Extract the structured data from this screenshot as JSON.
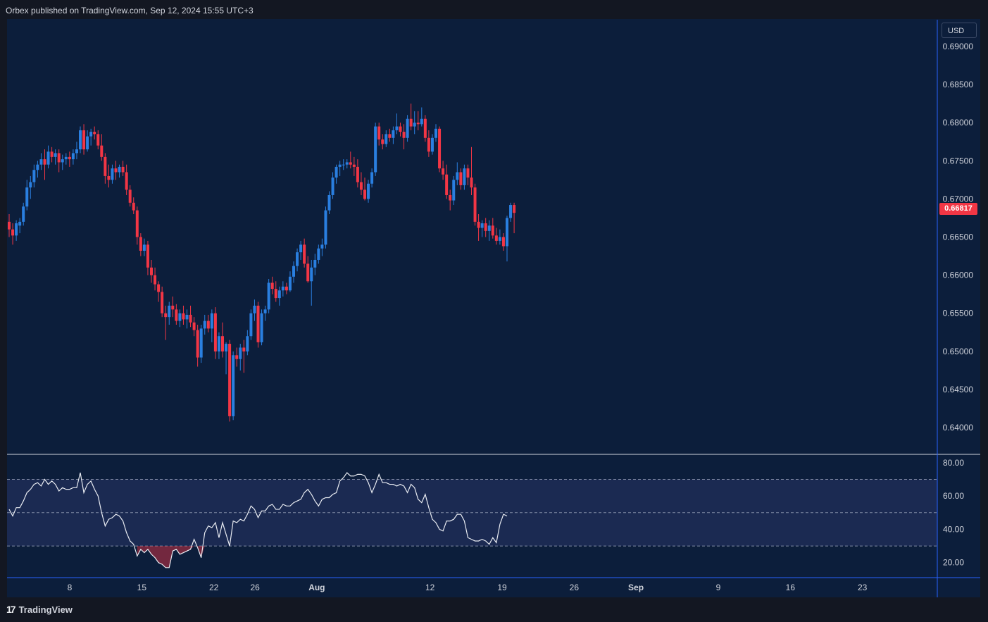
{
  "header": {
    "publisher_text": "Orbex published on TradingView.com, Sep 12, 2024 15:55 UTC+3"
  },
  "footer": {
    "brand": "TradingView",
    "logo_glyph": "17"
  },
  "currency_label": "USD",
  "last_price_label": "0.66817",
  "colors": {
    "background": "#0c1e3b",
    "up": "#2a7fe0",
    "down": "#f23645",
    "rsi_line": "#e9ecf2",
    "rsi_band": "#1d2b55"
  },
  "chart_data": [
    {
      "type": "candlestick",
      "symbol": "AUDUSD",
      "ylim": [
        0.6365,
        0.6935
      ],
      "y_ticks": [
        "0.69000",
        "0.68500",
        "0.68000",
        "0.67500",
        "0.67000",
        "0.66500",
        "0.66000",
        "0.65500",
        "0.65000",
        "0.64500",
        "0.64000"
      ],
      "y_tick_values": [
        0.69,
        0.685,
        0.68,
        0.675,
        0.67,
        0.665,
        0.66,
        0.655,
        0.65,
        0.645,
        0.64
      ],
      "x_ticks": [
        {
          "label": "8",
          "day": 8
        },
        {
          "label": "15",
          "day": 15
        },
        {
          "label": "22",
          "day": 22
        },
        {
          "label": "26",
          "day": 26
        },
        {
          "label": "Aug",
          "day": 32
        },
        {
          "label": "12",
          "day": 43
        },
        {
          "label": "19",
          "day": 50
        },
        {
          "label": "26",
          "day": 57
        },
        {
          "label": "Sep",
          "day": 63
        },
        {
          "label": "9",
          "day": 71
        },
        {
          "label": "16",
          "day": 78
        },
        {
          "label": "23",
          "day": 85
        }
      ],
      "candles": [
        [
          0.667,
          0.668,
          0.665,
          0.666
        ],
        [
          0.666,
          0.6668,
          0.664,
          0.6652
        ],
        [
          0.6652,
          0.6672,
          0.6645,
          0.6668
        ],
        [
          0.6665,
          0.6675,
          0.6655,
          0.667
        ],
        [
          0.667,
          0.6695,
          0.6665,
          0.669
        ],
        [
          0.669,
          0.6725,
          0.6685,
          0.6715
        ],
        [
          0.6715,
          0.673,
          0.67,
          0.6722
        ],
        [
          0.6722,
          0.6745,
          0.6715,
          0.6738
        ],
        [
          0.6738,
          0.675,
          0.6728,
          0.6745
        ],
        [
          0.6745,
          0.676,
          0.6738,
          0.6752
        ],
        [
          0.6752,
          0.6765,
          0.6725,
          0.6745
        ],
        [
          0.6745,
          0.677,
          0.674,
          0.6762
        ],
        [
          0.6762,
          0.6768,
          0.6748,
          0.6755
        ],
        [
          0.6755,
          0.6765,
          0.6745,
          0.676
        ],
        [
          0.676,
          0.6765,
          0.6735,
          0.6748
        ],
        [
          0.6748,
          0.6758,
          0.6738,
          0.6752
        ],
        [
          0.6752,
          0.676,
          0.6745,
          0.6755
        ],
        [
          0.6755,
          0.6762,
          0.6742,
          0.6752
        ],
        [
          0.6752,
          0.6765,
          0.6745,
          0.676
        ],
        [
          0.676,
          0.6775,
          0.6752,
          0.6765
        ],
        [
          0.6765,
          0.6795,
          0.676,
          0.679
        ],
        [
          0.679,
          0.6798,
          0.6758,
          0.6765
        ],
        [
          0.6765,
          0.679,
          0.6762,
          0.6782
        ],
        [
          0.6782,
          0.6792,
          0.677,
          0.6788
        ],
        [
          0.6788,
          0.6795,
          0.6778,
          0.6785
        ],
        [
          0.6785,
          0.679,
          0.6765,
          0.677
        ],
        [
          0.677,
          0.6785,
          0.675,
          0.6755
        ],
        [
          0.6755,
          0.676,
          0.672,
          0.673
        ],
        [
          0.673,
          0.6745,
          0.6715,
          0.6725
        ],
        [
          0.6725,
          0.6745,
          0.672,
          0.674
        ],
        [
          0.674,
          0.675,
          0.6725,
          0.6735
        ],
        [
          0.6735,
          0.6745,
          0.6728,
          0.6742
        ],
        [
          0.6742,
          0.675,
          0.673,
          0.6735
        ],
        [
          0.6735,
          0.6745,
          0.6705,
          0.6712
        ],
        [
          0.6712,
          0.6718,
          0.669,
          0.6695
        ],
        [
          0.6695,
          0.6702,
          0.668,
          0.6685
        ],
        [
          0.6685,
          0.669,
          0.664,
          0.665
        ],
        [
          0.665,
          0.6655,
          0.6625,
          0.6632
        ],
        [
          0.6632,
          0.6648,
          0.6625,
          0.664
        ],
        [
          0.664,
          0.6645,
          0.66,
          0.661
        ],
        [
          0.661,
          0.662,
          0.659,
          0.66
        ],
        [
          0.66,
          0.661,
          0.658,
          0.6588
        ],
        [
          0.6588,
          0.6592,
          0.6565,
          0.6578
        ],
        [
          0.6578,
          0.6585,
          0.6545,
          0.655
        ],
        [
          0.655,
          0.656,
          0.6515,
          0.6545
        ],
        [
          0.6545,
          0.6565,
          0.6535,
          0.656
        ],
        [
          0.656,
          0.6572,
          0.6545,
          0.6555
        ],
        [
          0.6555,
          0.6562,
          0.6535,
          0.654
        ],
        [
          0.654,
          0.6555,
          0.6532,
          0.655
        ],
        [
          0.655,
          0.656,
          0.6535,
          0.6542
        ],
        [
          0.6542,
          0.6555,
          0.653,
          0.6548
        ],
        [
          0.6548,
          0.656,
          0.6532,
          0.6538
        ],
        [
          0.6538,
          0.6545,
          0.652,
          0.6528
        ],
        [
          0.6528,
          0.6535,
          0.648,
          0.6492
        ],
        [
          0.6492,
          0.6535,
          0.6485,
          0.653
        ],
        [
          0.653,
          0.6548,
          0.6522,
          0.654
        ],
        [
          0.654,
          0.6548,
          0.6525,
          0.653
        ],
        [
          0.653,
          0.6555,
          0.6512,
          0.655
        ],
        [
          0.655,
          0.6558,
          0.649,
          0.65
        ],
        [
          0.65,
          0.6525,
          0.649,
          0.652
        ],
        [
          0.652,
          0.6538,
          0.6492,
          0.65
        ],
        [
          0.65,
          0.6512,
          0.647,
          0.651
        ],
        [
          0.651,
          0.6515,
          0.6408,
          0.6415
        ],
        [
          0.6415,
          0.65,
          0.641,
          0.6495
        ],
        [
          0.6495,
          0.6505,
          0.648,
          0.649
        ],
        [
          0.649,
          0.651,
          0.6475,
          0.6505
        ],
        [
          0.6505,
          0.6515,
          0.6472,
          0.65
        ],
        [
          0.65,
          0.6528,
          0.6495,
          0.652
        ],
        [
          0.652,
          0.6555,
          0.6515,
          0.655
        ],
        [
          0.655,
          0.6568,
          0.654,
          0.656
        ],
        [
          0.656,
          0.6565,
          0.6505,
          0.6512
        ],
        [
          0.6512,
          0.6555,
          0.6508,
          0.655
        ],
        [
          0.655,
          0.656,
          0.654,
          0.6555
        ],
        [
          0.6555,
          0.6595,
          0.655,
          0.659
        ],
        [
          0.659,
          0.6598,
          0.6575,
          0.6582
        ],
        [
          0.6582,
          0.6592,
          0.6565,
          0.657
        ],
        [
          0.657,
          0.6585,
          0.656,
          0.658
        ],
        [
          0.658,
          0.6592,
          0.6572,
          0.6585
        ],
        [
          0.6585,
          0.659,
          0.6575,
          0.658
        ],
        [
          0.658,
          0.6605,
          0.6578,
          0.6598
        ],
        [
          0.6598,
          0.6618,
          0.659,
          0.6612
        ],
        [
          0.6612,
          0.6635,
          0.6605,
          0.663
        ],
        [
          0.663,
          0.6645,
          0.662,
          0.664
        ],
        [
          0.664,
          0.6648,
          0.661,
          0.6615
        ],
        [
          0.6615,
          0.6625,
          0.659,
          0.6592
        ],
        [
          0.6592,
          0.662,
          0.656,
          0.661
        ],
        [
          0.661,
          0.6628,
          0.66,
          0.662
        ],
        [
          0.662,
          0.664,
          0.6615,
          0.6635
        ],
        [
          0.6635,
          0.6648,
          0.6625,
          0.664
        ],
        [
          0.664,
          0.669,
          0.6635,
          0.6685
        ],
        [
          0.6685,
          0.671,
          0.668,
          0.6705
        ],
        [
          0.6705,
          0.6735,
          0.67,
          0.6728
        ],
        [
          0.6728,
          0.6745,
          0.672,
          0.6742
        ],
        [
          0.6742,
          0.675,
          0.673,
          0.6745
        ],
        [
          0.6745,
          0.6752,
          0.6738,
          0.6745
        ],
        [
          0.6745,
          0.6752,
          0.674,
          0.6748
        ],
        [
          0.6748,
          0.6762,
          0.674,
          0.6745
        ],
        [
          0.6745,
          0.6755,
          0.673,
          0.6742
        ],
        [
          0.6742,
          0.6752,
          0.6715,
          0.6722
        ],
        [
          0.6722,
          0.6735,
          0.6705,
          0.6712
        ],
        [
          0.6712,
          0.6728,
          0.6698,
          0.67
        ],
        [
          0.67,
          0.6725,
          0.6695,
          0.672
        ],
        [
          0.672,
          0.674,
          0.6715,
          0.6735
        ],
        [
          0.6735,
          0.68,
          0.673,
          0.6795
        ],
        [
          0.6795,
          0.68,
          0.677,
          0.6778
        ],
        [
          0.6778,
          0.6785,
          0.6765,
          0.6772
        ],
        [
          0.6772,
          0.679,
          0.6768,
          0.6785
        ],
        [
          0.6785,
          0.6792,
          0.6775,
          0.678
        ],
        [
          0.678,
          0.6795,
          0.6772,
          0.679
        ],
        [
          0.679,
          0.6812,
          0.6785,
          0.6795
        ],
        [
          0.6795,
          0.68,
          0.6782,
          0.6788
        ],
        [
          0.6788,
          0.6798,
          0.6765,
          0.678
        ],
        [
          0.678,
          0.681,
          0.6775,
          0.6805
        ],
        [
          0.6805,
          0.6825,
          0.679,
          0.6795
        ],
        [
          0.6795,
          0.6815,
          0.6785,
          0.68
        ],
        [
          0.68,
          0.6815,
          0.679,
          0.6798
        ],
        [
          0.6798,
          0.682,
          0.6795,
          0.6805
        ],
        [
          0.6805,
          0.681,
          0.6775,
          0.678
        ],
        [
          0.678,
          0.679,
          0.6755,
          0.6762
        ],
        [
          0.6762,
          0.6785,
          0.6758,
          0.678
        ],
        [
          0.678,
          0.6798,
          0.6775,
          0.6792
        ],
        [
          0.6792,
          0.6795,
          0.6735,
          0.674
        ],
        [
          0.674,
          0.675,
          0.6725,
          0.6732
        ],
        [
          0.6732,
          0.6745,
          0.67,
          0.6705
        ],
        [
          0.6705,
          0.6712,
          0.6685,
          0.6698
        ],
        [
          0.6698,
          0.673,
          0.6692,
          0.6725
        ],
        [
          0.6725,
          0.6748,
          0.6718,
          0.6735
        ],
        [
          0.6735,
          0.674,
          0.6712,
          0.6718
        ],
        [
          0.6718,
          0.6745,
          0.6712,
          0.674
        ],
        [
          0.674,
          0.6745,
          0.6718,
          0.6728
        ],
        [
          0.6728,
          0.6768,
          0.6705,
          0.6715
        ],
        [
          0.6715,
          0.672,
          0.6665,
          0.667
        ],
        [
          0.667,
          0.668,
          0.6645,
          0.6662
        ],
        [
          0.6662,
          0.6672,
          0.665,
          0.6668
        ],
        [
          0.6668,
          0.6675,
          0.665,
          0.6658
        ],
        [
          0.6658,
          0.6672,
          0.6645,
          0.6665
        ],
        [
          0.6665,
          0.6675,
          0.6648,
          0.6652
        ],
        [
          0.6652,
          0.6662,
          0.664,
          0.6645
        ],
        [
          0.6645,
          0.666,
          0.664,
          0.665
        ],
        [
          0.665,
          0.6655,
          0.6632,
          0.6638
        ],
        [
          0.6638,
          0.6678,
          0.6618,
          0.6675
        ],
        [
          0.6675,
          0.6695,
          0.667,
          0.6692
        ],
        [
          0.6692,
          0.6695,
          0.6655,
          0.66817
        ]
      ]
    },
    {
      "type": "line",
      "name": "RSI",
      "ylim": [
        11,
        85
      ],
      "y_ticks": [
        "80.00",
        "60.00",
        "40.00",
        "20.00"
      ],
      "y_tick_values": [
        80,
        60,
        40,
        20
      ],
      "levels": [
        70,
        50,
        30
      ],
      "values": [
        52,
        48,
        53,
        53,
        57,
        62,
        64,
        67,
        68,
        66,
        70,
        67,
        69,
        67,
        63,
        65,
        64,
        64,
        65,
        65,
        74,
        62,
        67,
        69,
        64,
        60,
        50,
        42,
        46,
        47,
        49,
        48,
        45,
        38,
        33,
        31,
        24,
        28,
        26,
        28,
        25,
        23,
        20,
        19,
        17,
        17,
        27,
        28,
        25,
        26,
        27,
        28,
        34,
        29,
        23,
        38,
        42,
        41,
        44,
        35,
        44,
        37,
        30,
        45,
        44,
        46,
        45,
        49,
        54,
        52,
        47,
        51,
        51,
        54,
        55,
        52,
        52,
        55,
        54,
        54,
        56,
        57,
        58,
        62,
        64,
        61,
        57,
        54,
        58,
        59,
        59,
        61,
        62,
        69,
        71,
        74,
        72,
        72,
        73,
        73,
        72,
        68,
        62,
        67,
        73,
        68,
        68,
        67,
        67,
        66,
        67,
        66,
        62,
        67,
        65,
        58,
        56,
        61,
        53,
        46,
        44,
        40,
        39,
        45,
        45,
        46,
        49,
        49,
        45,
        35,
        34,
        33,
        33,
        34,
        33,
        31,
        35,
        32,
        43,
        49,
        48
      ]
    }
  ]
}
